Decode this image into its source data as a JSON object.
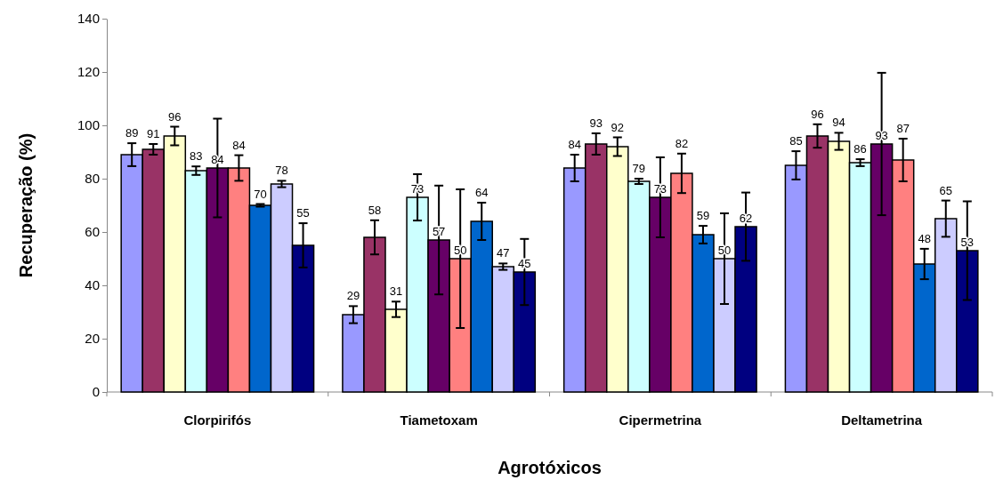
{
  "chart_data": {
    "type": "bar",
    "xlabel": "Agrotóxicos",
    "ylabel": "Recuperação (%)",
    "categories": [
      "Clorpirifós",
      "Tiametoxam",
      "Cipermetrina",
      "Deltametrina"
    ],
    "ylim": [
      0,
      140
    ],
    "yticks": [
      0,
      20,
      40,
      60,
      80,
      100,
      120,
      140
    ],
    "grid": false,
    "data_labels": true,
    "series": [
      {
        "color": "#9999ff",
        "values": [
          89,
          29,
          84,
          85
        ],
        "errors": [
          4.3,
          3.2,
          5,
          5.3
        ]
      },
      {
        "color": "#993366",
        "values": [
          91,
          58,
          93,
          96
        ],
        "errors": [
          2,
          6.4,
          4,
          4.4
        ]
      },
      {
        "color": "#ffffcc",
        "values": [
          96,
          31,
          92,
          94
        ],
        "errors": [
          3.5,
          2.9,
          3.5,
          3.2
        ]
      },
      {
        "color": "#ccffff",
        "values": [
          83,
          73,
          79,
          86
        ],
        "errors": [
          1.6,
          8.7,
          1,
          1.3
        ]
      },
      {
        "color": "#660066",
        "values": [
          84,
          57,
          73,
          93
        ],
        "errors": [
          18.5,
          20.4,
          15,
          26.7
        ]
      },
      {
        "color": "#ff8080",
        "values": [
          84,
          50,
          82,
          87
        ],
        "errors": [
          4.8,
          26,
          7.4,
          8
        ]
      },
      {
        "color": "#0066cc",
        "values": [
          70,
          64,
          59,
          48
        ],
        "errors": [
          0.5,
          7,
          3.3,
          5.7
        ]
      },
      {
        "color": "#ccccff",
        "values": [
          78,
          47,
          50,
          65
        ],
        "errors": [
          1.2,
          1.2,
          17,
          6.8
        ]
      },
      {
        "color": "#000080",
        "values": [
          55,
          45,
          62,
          53
        ],
        "errors": [
          8.3,
          12.4,
          12.8,
          18.5
        ]
      }
    ]
  }
}
